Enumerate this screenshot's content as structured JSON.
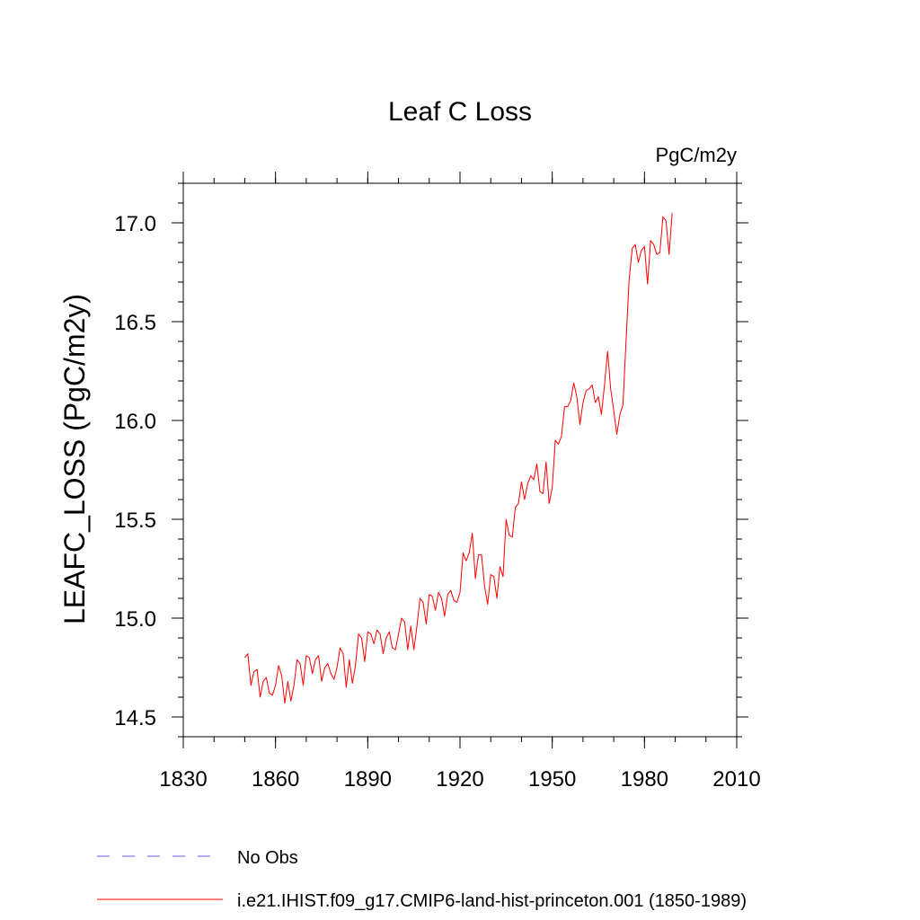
{
  "chart_data": {
    "type": "line",
    "title": "Leaf C Loss",
    "units_label": "PgC/m2y",
    "ylabel": "LEAFC_LOSS  (PgC/m2y)",
    "xlabel": "",
    "xlim": [
      1830,
      2010
    ],
    "ylim": [
      14.4,
      17.2
    ],
    "x_ticks": [
      1830,
      1860,
      1890,
      1920,
      1950,
      1980,
      2010
    ],
    "x_tick_labels": [
      "1830",
      "1860",
      "1890",
      "1920",
      "1950",
      "1980",
      "2010"
    ],
    "y_ticks": [
      14.5,
      15.0,
      15.5,
      16.0,
      16.5,
      17.0
    ],
    "y_tick_labels": [
      "14.5",
      "15.0",
      "15.5",
      "16.0",
      "16.5",
      "17.0"
    ],
    "grid": false,
    "legend_position": "bottom-left",
    "series": [
      {
        "name": "No Obs",
        "color": "#6a5acd",
        "dash": "dashed",
        "x": [],
        "y": []
      },
      {
        "name": "i.e21.IHIST.f09_g17.CMIP6-land-hist-princeton.001 (1850-1989)",
        "color": "#ff0000",
        "dash": "solid",
        "x": [
          1850,
          1851,
          1852,
          1853,
          1854,
          1855,
          1856,
          1857,
          1858,
          1859,
          1860,
          1861,
          1862,
          1863,
          1864,
          1865,
          1866,
          1867,
          1868,
          1869,
          1870,
          1871,
          1872,
          1873,
          1874,
          1875,
          1876,
          1877,
          1878,
          1879,
          1880,
          1881,
          1882,
          1883,
          1884,
          1885,
          1886,
          1887,
          1888,
          1889,
          1890,
          1891,
          1892,
          1893,
          1894,
          1895,
          1896,
          1897,
          1898,
          1899,
          1900,
          1901,
          1902,
          1903,
          1904,
          1905,
          1906,
          1907,
          1908,
          1909,
          1910,
          1911,
          1912,
          1913,
          1914,
          1915,
          1916,
          1917,
          1918,
          1919,
          1920,
          1921,
          1922,
          1923,
          1924,
          1925,
          1926,
          1927,
          1928,
          1929,
          1930,
          1931,
          1932,
          1933,
          1934,
          1935,
          1936,
          1937,
          1938,
          1939,
          1940,
          1941,
          1942,
          1943,
          1944,
          1945,
          1946,
          1947,
          1948,
          1949,
          1950,
          1951,
          1952,
          1953,
          1954,
          1955,
          1956,
          1957,
          1958,
          1959,
          1960,
          1961,
          1962,
          1963,
          1964,
          1965,
          1966,
          1967,
          1968,
          1969,
          1970,
          1971,
          1972,
          1973,
          1974,
          1975,
          1976,
          1977,
          1978,
          1979,
          1980,
          1981,
          1982,
          1983,
          1984,
          1985,
          1986,
          1987,
          1988,
          1989
        ],
        "y": [
          14.8,
          14.82,
          14.66,
          14.73,
          14.74,
          14.6,
          14.68,
          14.7,
          14.62,
          14.61,
          14.66,
          14.76,
          14.71,
          14.57,
          14.68,
          14.58,
          14.66,
          14.79,
          14.77,
          14.66,
          14.81,
          14.8,
          14.72,
          14.79,
          14.81,
          14.68,
          14.75,
          14.77,
          14.72,
          14.69,
          14.75,
          14.85,
          14.82,
          14.65,
          14.79,
          14.67,
          14.76,
          14.92,
          14.9,
          14.78,
          14.93,
          14.92,
          14.87,
          14.94,
          14.92,
          14.82,
          14.9,
          14.93,
          14.85,
          14.84,
          14.92,
          15.0,
          14.98,
          14.84,
          14.96,
          14.84,
          14.96,
          15.1,
          15.08,
          14.97,
          15.12,
          15.11,
          15.04,
          15.13,
          15.1,
          15.01,
          15.12,
          15.14,
          15.09,
          15.08,
          15.13,
          15.33,
          15.29,
          15.33,
          15.43,
          15.2,
          15.32,
          15.32,
          15.16,
          15.07,
          15.22,
          15.21,
          15.1,
          15.26,
          15.21,
          15.5,
          15.42,
          15.41,
          15.56,
          15.58,
          15.69,
          15.6,
          15.68,
          15.72,
          15.7,
          15.78,
          15.64,
          15.63,
          15.79,
          15.58,
          15.66,
          15.9,
          15.88,
          15.92,
          16.07,
          16.07,
          16.1,
          16.19,
          16.12,
          15.98,
          16.09,
          16.15,
          16.16,
          16.18,
          16.09,
          16.12,
          16.03,
          16.18,
          16.35,
          16.16,
          16.05,
          15.93,
          16.03,
          16.08,
          16.4,
          16.71,
          16.87,
          16.89,
          16.8,
          16.86,
          16.88,
          16.69,
          16.91,
          16.89,
          16.84,
          16.85,
          17.03,
          17.01,
          16.84,
          17.05
        ]
      }
    ]
  }
}
